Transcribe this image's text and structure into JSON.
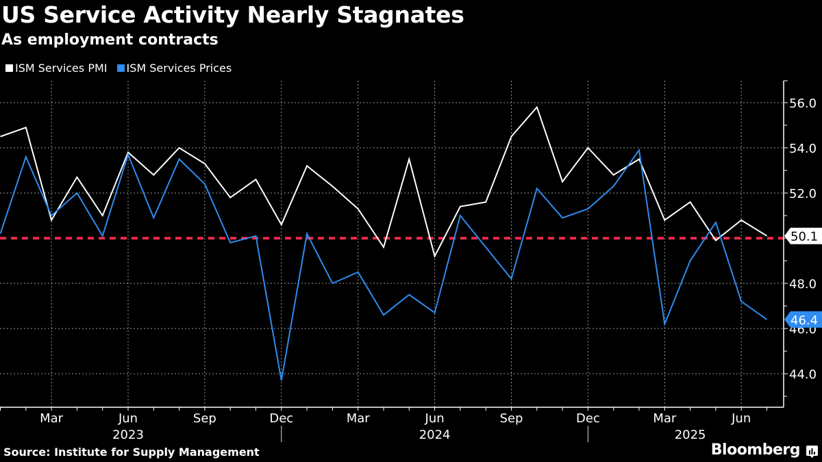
{
  "header": {
    "title": "US Service Activity Nearly Stagnates",
    "subtitle": "As employment contracts"
  },
  "legend": [
    {
      "label": "ISM Services PMI",
      "color": "#ffffff"
    },
    {
      "label": "ISM Services Prices",
      "color": "#2f8cf0"
    }
  ],
  "footer": {
    "source": "Source: Institute for Supply Management",
    "brand": "Bloomberg"
  },
  "chart_data": {
    "type": "line",
    "title": "US Service Activity Nearly Stagnates",
    "subtitle": "As employment contracts",
    "xlabel": "",
    "ylabel": "",
    "x": [
      "2023-01",
      "2023-02",
      "2023-03",
      "2023-04",
      "2023-05",
      "2023-06",
      "2023-07",
      "2023-08",
      "2023-09",
      "2023-10",
      "2023-11",
      "2023-12",
      "2024-01",
      "2024-02",
      "2024-03",
      "2024-04",
      "2024-05",
      "2024-06",
      "2024-07",
      "2024-08",
      "2024-09",
      "2024-10",
      "2024-11",
      "2024-12",
      "2025-01",
      "2025-02",
      "2025-03",
      "2025-04",
      "2025-05",
      "2025-06",
      "2025-07"
    ],
    "series": [
      {
        "name": "ISM Services PMI",
        "color": "#ffffff",
        "values": [
          54.5,
          54.9,
          50.8,
          52.7,
          51.0,
          53.8,
          52.8,
          54.0,
          53.3,
          51.8,
          52.6,
          50.6,
          53.2,
          52.3,
          51.3,
          49.6,
          53.5,
          49.2,
          51.4,
          51.6,
          54.5,
          55.8,
          52.5,
          54.0,
          52.8,
          53.5,
          50.8,
          51.6,
          49.9,
          50.8,
          50.1
        ]
      },
      {
        "name": "ISM Services Prices",
        "color": "#2f8cf0",
        "values": [
          50.2,
          53.6,
          51.0,
          52.0,
          50.1,
          53.7,
          50.9,
          53.5,
          52.4,
          49.8,
          50.1,
          43.7,
          50.2,
          48.0,
          48.5,
          46.6,
          47.5,
          46.7,
          51.0,
          49.6,
          48.2,
          52.2,
          50.9,
          51.3,
          52.3,
          53.9,
          46.2,
          49.0,
          50.7,
          47.2,
          46.4
        ]
      }
    ],
    "reference_line": {
      "value": 50,
      "color": "#e8284a",
      "style": "dashed"
    },
    "last_value_labels": [
      {
        "series": "ISM Services PMI",
        "value": "50.1"
      },
      {
        "series": "ISM Services Prices",
        "value": "46.4"
      }
    ],
    "y_axis": {
      "position": "right",
      "ylim": [
        42.8,
        57.0
      ],
      "ticks": [
        44,
        46,
        48,
        50,
        52,
        54,
        56
      ],
      "tick_labels": [
        "44.0",
        "46.0",
        "48.0",
        "",
        "52.0",
        "54.0",
        "56.0"
      ]
    },
    "x_axis": {
      "month_ticks": [
        {
          "label": "Mar",
          "x": "2023-03"
        },
        {
          "label": "Jun",
          "x": "2023-06"
        },
        {
          "label": "Sep",
          "x": "2023-09"
        },
        {
          "label": "Dec",
          "x": "2023-12"
        },
        {
          "label": "Mar",
          "x": "2024-03"
        },
        {
          "label": "Jun",
          "x": "2024-06"
        },
        {
          "label": "Sep",
          "x": "2024-09"
        },
        {
          "label": "Dec",
          "x": "2024-12"
        },
        {
          "label": "Mar",
          "x": "2025-03"
        },
        {
          "label": "Jun",
          "x": "2025-06"
        }
      ],
      "year_labels": [
        {
          "label": "2023",
          "x": "2023-06"
        },
        {
          "label": "2024",
          "x": "2024-06"
        },
        {
          "label": "2025",
          "x": "2025-04"
        }
      ],
      "year_separators": [
        "2023-12",
        "2024-12"
      ]
    },
    "grid": true,
    "legend_position": "top-left"
  }
}
